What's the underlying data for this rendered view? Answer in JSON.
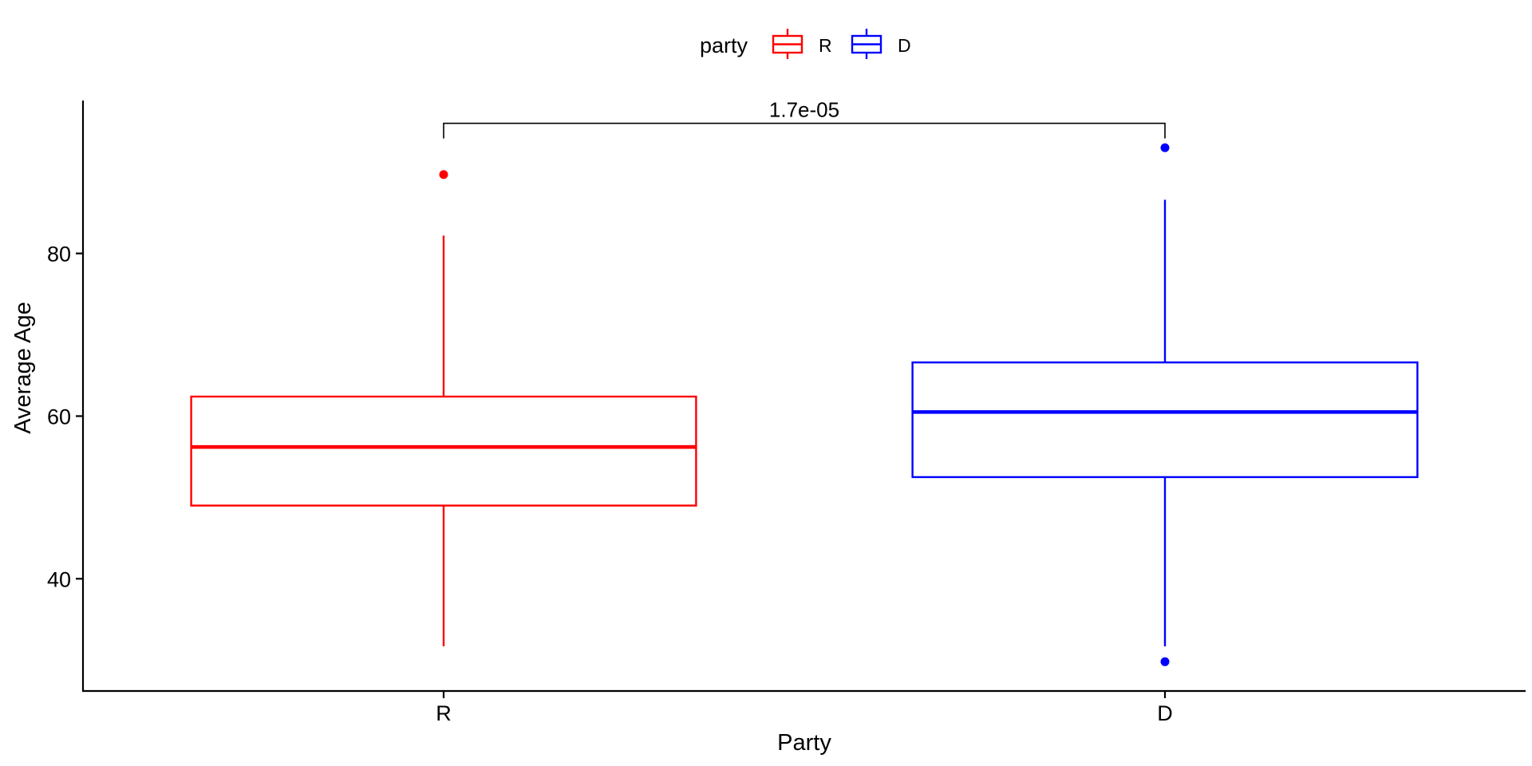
{
  "chart_data": {
    "type": "box",
    "title": "",
    "xlabel": "Party",
    "ylabel": "Average Age",
    "ylim": [
      26.2,
      98.8
    ],
    "y_ticks": [
      40,
      60,
      80
    ],
    "grid": false,
    "legend": {
      "title": "party",
      "position": "top",
      "entries": [
        "R",
        "D"
      ]
    },
    "categories": [
      "R",
      "D"
    ],
    "series": [
      {
        "name": "R",
        "color": "#ff0000",
        "lower_whisker": 31.7,
        "q1": 49.0,
        "median": 56.2,
        "q3": 62.4,
        "upper_whisker": 82.2,
        "outliers": [
          89.7
        ]
      },
      {
        "name": "D",
        "color": "#0000ff",
        "lower_whisker": 31.7,
        "q1": 52.5,
        "median": 60.5,
        "q3": 66.6,
        "upper_whisker": 86.6,
        "outliers": [
          93.0,
          29.8
        ]
      }
    ],
    "annotations": [
      {
        "text": "1.7e-05",
        "between": [
          "R",
          "D"
        ],
        "y": 96.0
      }
    ]
  }
}
